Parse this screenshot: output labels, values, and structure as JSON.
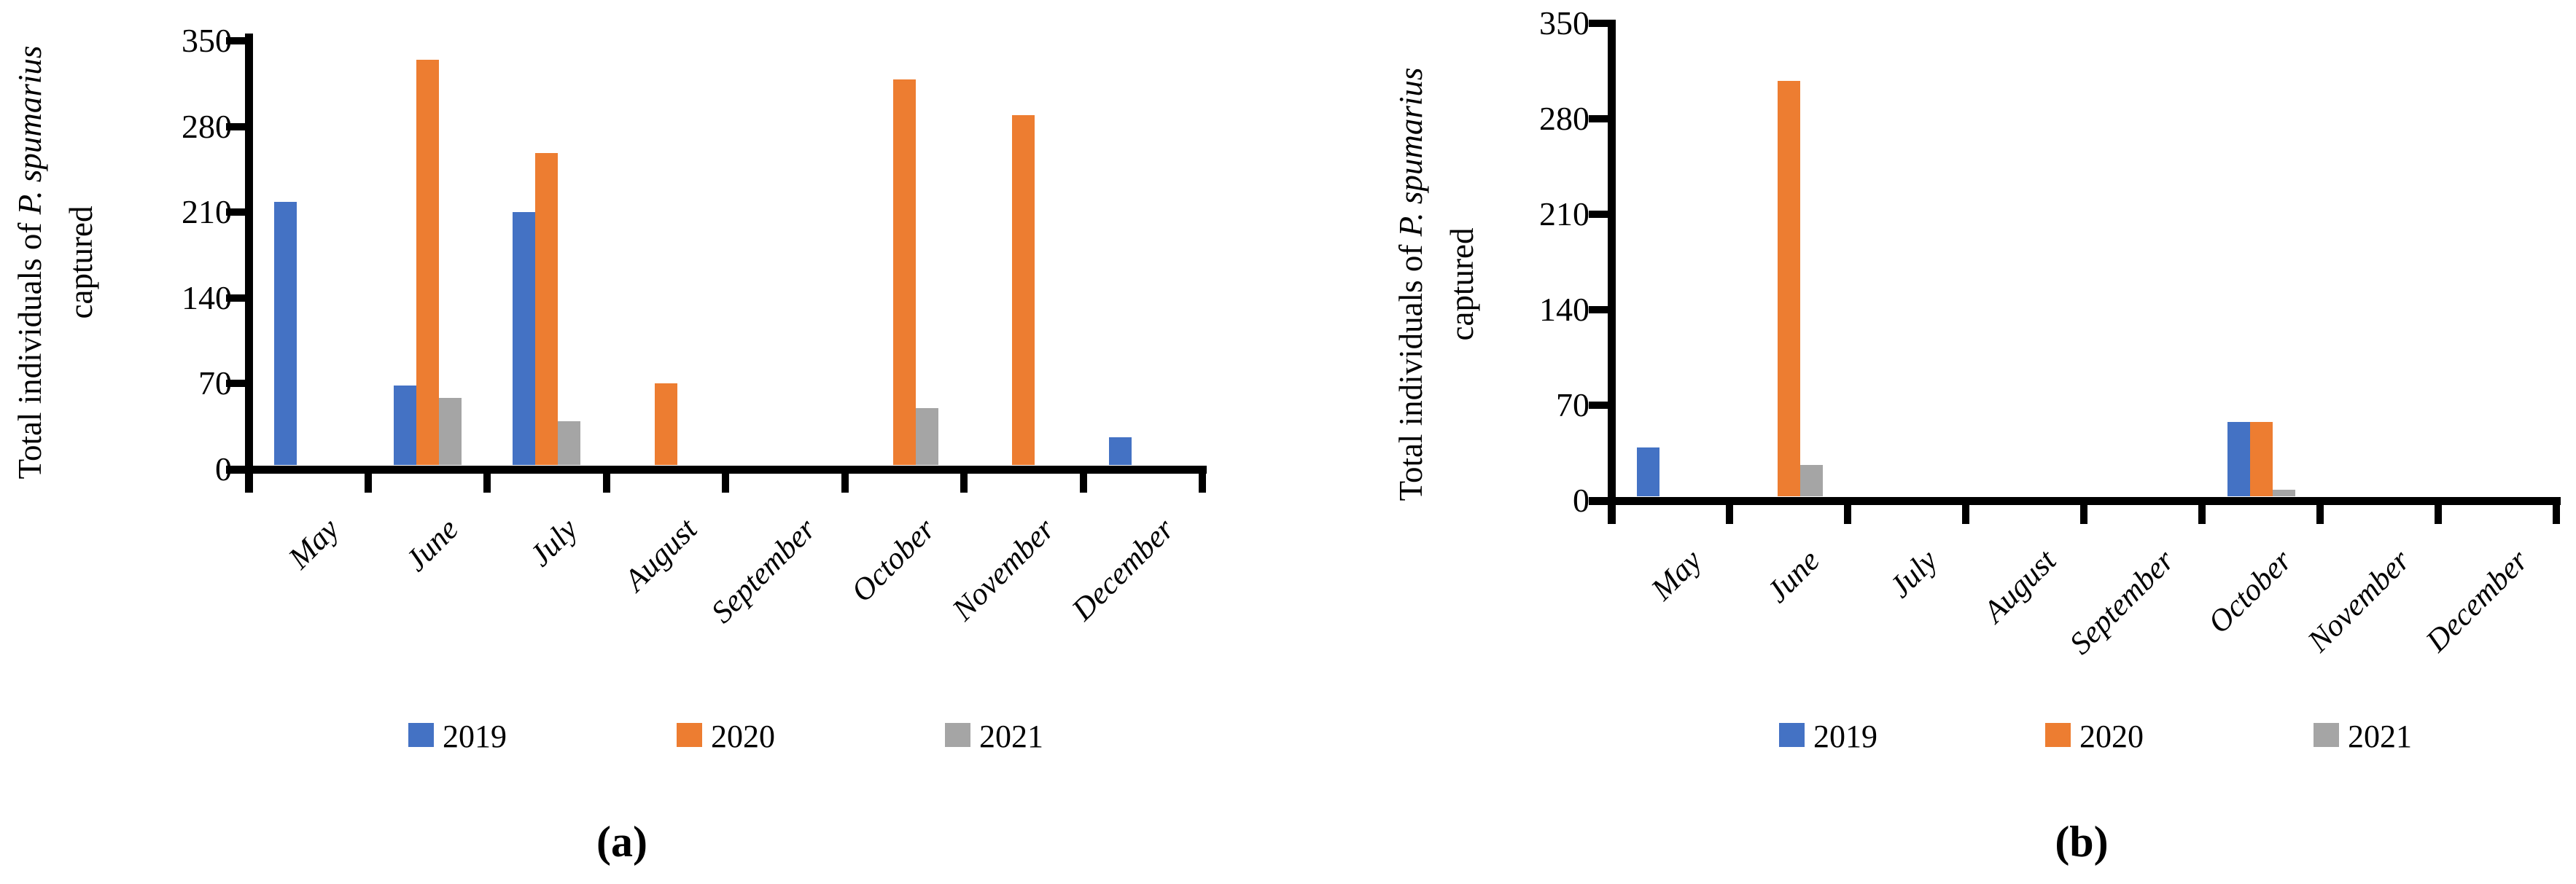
{
  "chart_data": [
    {
      "type": "bar",
      "panel_label": "(a)",
      "ylabel_pre": "Total individuals of ",
      "ylabel_species": "P. spumarius",
      "ylabel_line2": "captured",
      "xlabel": "",
      "ylim": [
        0,
        350
      ],
      "yticks": [
        0,
        70,
        140,
        210,
        280,
        350
      ],
      "grid": false,
      "legend_position": "bottom",
      "categories": [
        "May",
        "June",
        "July",
        "August",
        "September",
        "October",
        "November",
        "December"
      ],
      "series": [
        {
          "name": "2019",
          "color": "#4472C4",
          "values": [
            215,
            65,
            207,
            0,
            0,
            0,
            0,
            23
          ]
        },
        {
          "name": "2020",
          "color": "#ED7D31",
          "values": [
            0,
            331,
            255,
            67,
            0,
            315,
            286,
            0
          ]
        },
        {
          "name": "2021",
          "color": "#A5A5A5",
          "values": [
            0,
            55,
            36,
            0,
            0,
            47,
            0,
            0
          ]
        }
      ]
    },
    {
      "type": "bar",
      "panel_label": "(b)",
      "ylabel_pre": "Total individuals of ",
      "ylabel_species": "P. spumarius",
      "ylabel_line2": "captured",
      "xlabel": "",
      "ylim": [
        0,
        350
      ],
      "yticks": [
        0,
        70,
        140,
        210,
        280,
        350
      ],
      "grid": false,
      "legend_position": "bottom",
      "categories": [
        "May",
        "June",
        "July",
        "August",
        "September",
        "October",
        "November",
        "December"
      ],
      "series": [
        {
          "name": "2019",
          "color": "#4472C4",
          "values": [
            36,
            0,
            0,
            0,
            0,
            55,
            0,
            0
          ]
        },
        {
          "name": "2020",
          "color": "#ED7D31",
          "values": [
            0,
            305,
            0,
            0,
            0,
            55,
            0,
            0
          ]
        },
        {
          "name": "2021",
          "color": "#A5A5A5",
          "values": [
            0,
            23,
            0,
            0,
            0,
            5,
            0,
            0
          ]
        }
      ]
    }
  ]
}
